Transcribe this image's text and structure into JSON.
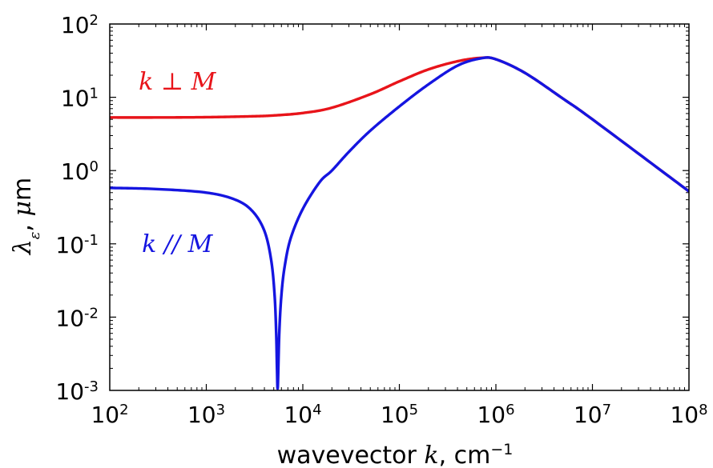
{
  "chart_data": {
    "type": "line",
    "title": "",
    "xlabel": {
      "text": "wavevector ",
      "var": "k",
      "unit": ", cm",
      "exp": "−1"
    },
    "ylabel": {
      "sym": "λ",
      "sub": "ε",
      "comma": ", ",
      "mu": "μ",
      "unit": "m"
    },
    "xscale": "log",
    "yscale": "log",
    "xlim": [
      100,
      100000000
    ],
    "ylim": [
      0.001,
      100
    ],
    "grid": false,
    "x_ticks": [
      {
        "base": "10",
        "exp": "2"
      },
      {
        "base": "10",
        "exp": "3"
      },
      {
        "base": "10",
        "exp": "4"
      },
      {
        "base": "10",
        "exp": "5"
      },
      {
        "base": "10",
        "exp": "6"
      },
      {
        "base": "10",
        "exp": "7"
      },
      {
        "base": "10",
        "exp": "8"
      }
    ],
    "y_ticks": [
      {
        "base": "10",
        "exp": "-3"
      },
      {
        "base": "10",
        "exp": "-2"
      },
      {
        "base": "10",
        "exp": "-1"
      },
      {
        "base": "10",
        "exp": "0"
      },
      {
        "base": "10",
        "exp": "1"
      },
      {
        "base": "10",
        "exp": "2"
      }
    ],
    "series": [
      {
        "name": "k ⊥ M",
        "color": "#e8141a",
        "label_pos": [
          500,
          11
        ],
        "x": [
          100,
          300,
          1000,
          3000,
          5000,
          10000,
          20000,
          50000,
          100000,
          200000,
          400000,
          700000,
          1000000,
          2000000,
          5000000,
          10000000,
          100000000
        ],
        "y": [
          5.3,
          5.3,
          5.35,
          5.5,
          5.65,
          6.1,
          7.2,
          11.0,
          16.5,
          24.0,
          31.0,
          34.5,
          33.0,
          21.5,
          9.5,
          5.0,
          0.52
        ]
      },
      {
        "name": "k // M",
        "color": "#1515e0",
        "label_pos": [
          500,
          0.1
        ],
        "x": [
          100,
          300,
          1000,
          2000,
          3000,
          4000,
          4700,
          5100,
          5300,
          5400,
          5500,
          5700,
          6000,
          6500,
          7500,
          10000,
          15000,
          20000,
          30000,
          50000,
          100000,
          200000,
          400000,
          700000,
          1000000,
          2000000,
          5000000,
          10000000,
          100000000
        ],
        "y": [
          0.58,
          0.56,
          0.5,
          0.4,
          0.28,
          0.15,
          0.06,
          0.02,
          0.006,
          0.002,
          0.0011,
          0.006,
          0.02,
          0.05,
          0.12,
          0.3,
          0.7,
          1.0,
          1.8,
          3.5,
          7.5,
          15.0,
          27.0,
          34.0,
          33.0,
          21.5,
          9.5,
          5.0,
          0.52
        ]
      }
    ]
  }
}
